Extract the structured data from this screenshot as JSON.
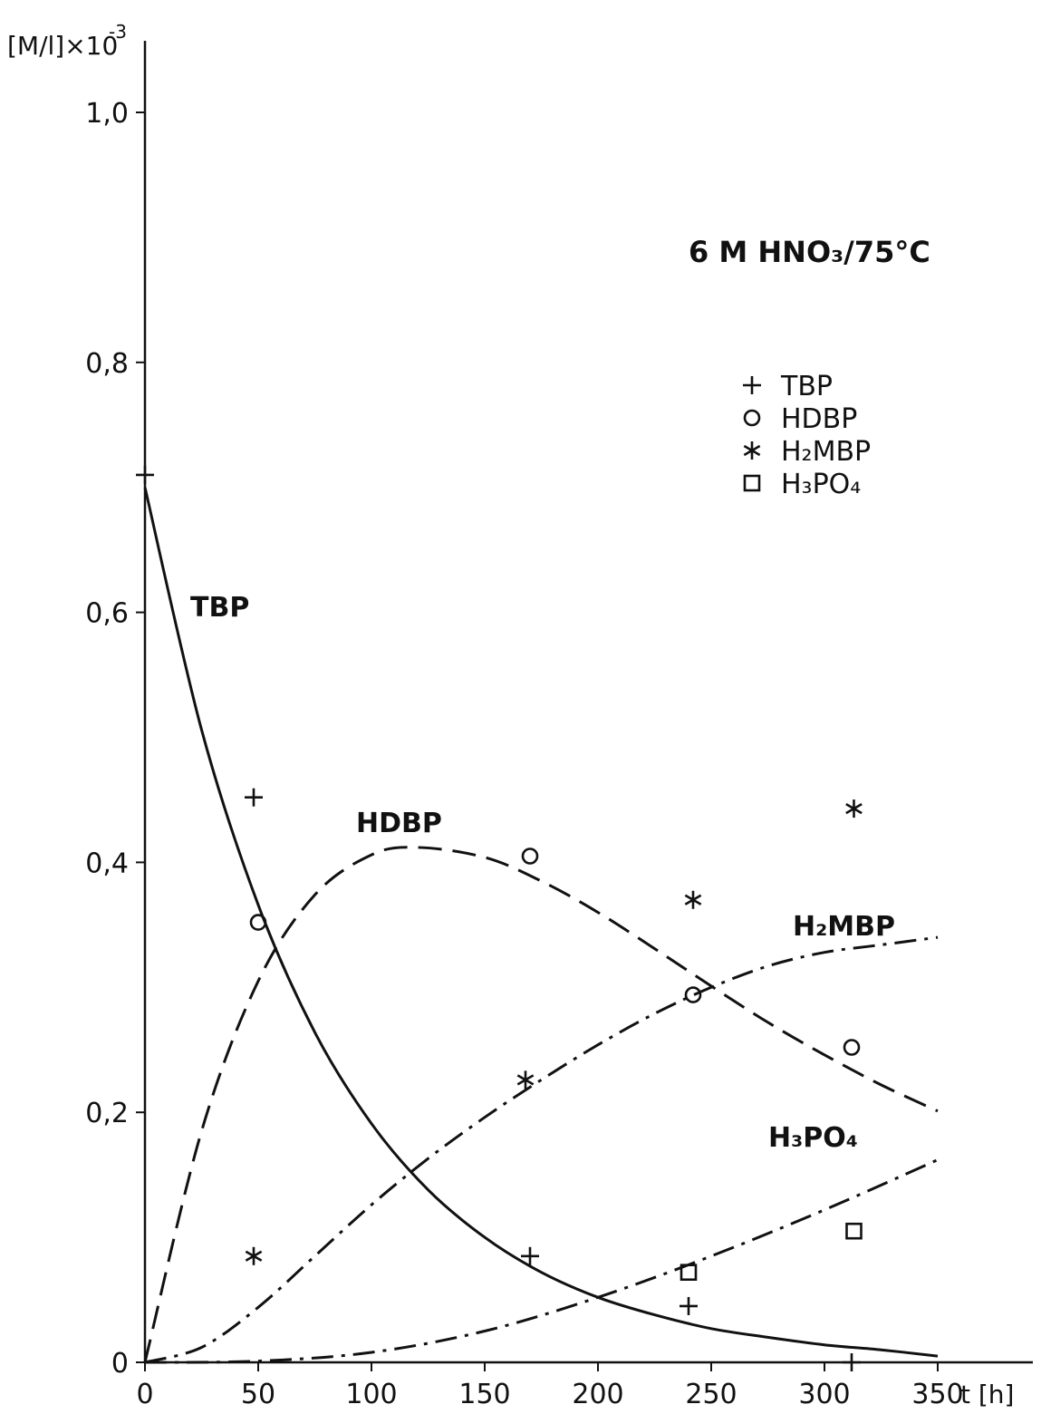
{
  "chart_data": {
    "type": "scatter",
    "ylabel": "[M/l]×10",
    "ylabel_exponent": "-3",
    "xlabel": "t [h]",
    "condition_label": "6 M HNO₃/75°C",
    "xlim": [
      0,
      350
    ],
    "ylim": [
      0,
      1.0
    ],
    "x_ticks": [
      0,
      50,
      100,
      150,
      200,
      250,
      300,
      350
    ],
    "x_tick_labels": [
      "0",
      "50",
      "100",
      "150",
      "200",
      "250",
      "300",
      "350"
    ],
    "y_ticks": [
      0,
      0.2,
      0.4,
      0.6,
      0.8,
      1.0
    ],
    "y_tick_labels": [
      "0",
      "0,2",
      "0,4",
      "0,6",
      "0,8",
      "1,0"
    ],
    "grid": false,
    "legend_position": "top-right",
    "series": [
      {
        "name": "TBP",
        "marker": "plus",
        "line_style": "solid",
        "points": [
          [
            0,
            0.71
          ],
          [
            48,
            0.452
          ],
          [
            170,
            0.085
          ],
          [
            240,
            0.045
          ],
          [
            312,
            0.0
          ]
        ],
        "curve": [
          [
            0,
            0.7
          ],
          [
            25,
            0.506
          ],
          [
            50,
            0.366
          ],
          [
            75,
            0.264
          ],
          [
            100,
            0.191
          ],
          [
            125,
            0.138
          ],
          [
            150,
            0.1
          ],
          [
            175,
            0.072
          ],
          [
            200,
            0.052
          ],
          [
            225,
            0.038
          ],
          [
            250,
            0.027
          ],
          [
            275,
            0.02
          ],
          [
            300,
            0.014
          ],
          [
            325,
            0.01
          ],
          [
            350,
            0.005
          ]
        ],
        "curve_label": "TBP"
      },
      {
        "name": "HDBP",
        "marker": "circle",
        "line_style": "dashed",
        "points": [
          [
            50,
            0.352
          ],
          [
            170,
            0.405
          ],
          [
            242,
            0.294
          ],
          [
            312,
            0.252
          ]
        ],
        "curve": [
          [
            0,
            0.0
          ],
          [
            25,
            0.185
          ],
          [
            50,
            0.305
          ],
          [
            75,
            0.374
          ],
          [
            100,
            0.406
          ],
          [
            120,
            0.412
          ],
          [
            150,
            0.404
          ],
          [
            175,
            0.385
          ],
          [
            200,
            0.36
          ],
          [
            225,
            0.331
          ],
          [
            250,
            0.301
          ],
          [
            275,
            0.272
          ],
          [
            300,
            0.246
          ],
          [
            325,
            0.222
          ],
          [
            350,
            0.201
          ]
        ],
        "curve_label": "HDBP"
      },
      {
        "name": "H₂MBP",
        "marker": "asterisk",
        "line_style": "dash-dot",
        "points": [
          [
            48,
            0.085
          ],
          [
            168,
            0.226
          ],
          [
            242,
            0.37
          ],
          [
            313,
            0.443
          ]
        ],
        "curve": [
          [
            0,
            0.0
          ],
          [
            25,
            0.012
          ],
          [
            50,
            0.044
          ],
          [
            75,
            0.085
          ],
          [
            100,
            0.126
          ],
          [
            125,
            0.163
          ],
          [
            150,
            0.196
          ],
          [
            175,
            0.226
          ],
          [
            200,
            0.254
          ],
          [
            225,
            0.279
          ],
          [
            250,
            0.3
          ],
          [
            275,
            0.317
          ],
          [
            300,
            0.328
          ],
          [
            325,
            0.334
          ],
          [
            350,
            0.34
          ]
        ],
        "curve_label": "H₂MBP"
      },
      {
        "name": "H₃PO₄",
        "marker": "square",
        "line_style": "dash-dot",
        "points": [
          [
            240,
            0.072
          ],
          [
            313,
            0.105
          ]
        ],
        "curve": [
          [
            0,
            0.0
          ],
          [
            50,
            0.001
          ],
          [
            100,
            0.008
          ],
          [
            150,
            0.025
          ],
          [
            200,
            0.052
          ],
          [
            250,
            0.085
          ],
          [
            300,
            0.122
          ],
          [
            350,
            0.162
          ]
        ],
        "curve_label": "H₃PO₄"
      }
    ],
    "legend": [
      {
        "marker": "plus",
        "label": "TBP"
      },
      {
        "marker": "circle",
        "label": "HDBP"
      },
      {
        "marker": "asterisk",
        "label": "H₂MBP"
      },
      {
        "marker": "square",
        "label": "H₃PO₄"
      }
    ]
  }
}
